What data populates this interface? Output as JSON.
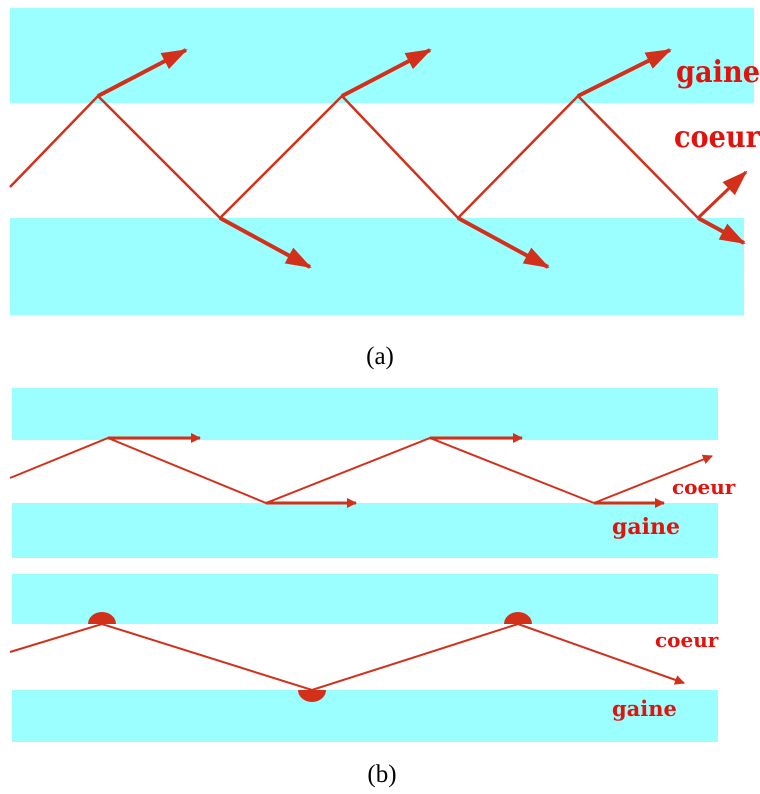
{
  "panel_a": {
    "caption": "(a)",
    "label_cladding": "gaine",
    "label_core": "coeur"
  },
  "panel_b": {
    "caption": "(b)",
    "upper": {
      "label_core": "coeur",
      "label_cladding": "gaine"
    },
    "lower": {
      "label_core": "coeur",
      "label_cladding": "gaine"
    }
  },
  "colors": {
    "cladding": "#9cffff",
    "core": "#ffffff",
    "ray": "#d2301a",
    "label": "#e0140e"
  }
}
